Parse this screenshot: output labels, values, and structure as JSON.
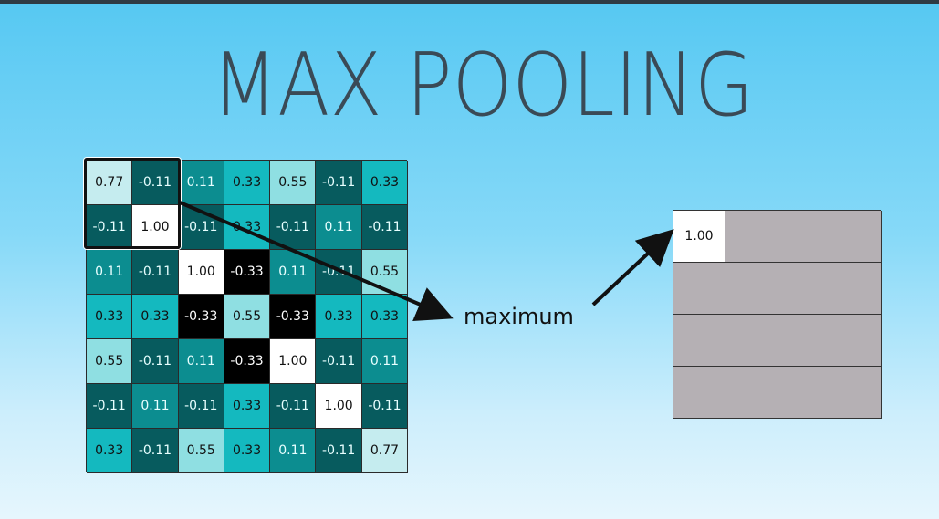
{
  "title": "MAX POOLING",
  "arrow_label": "maximum",
  "input_grid": [
    [
      "0.77",
      "-0.11",
      "0.11",
      "0.33",
      "0.55",
      "-0.11",
      "0.33"
    ],
    [
      "-0.11",
      "1.00",
      "-0.11",
      "0.33",
      "-0.11",
      "0.11",
      "-0.11"
    ],
    [
      "0.11",
      "-0.11",
      "1.00",
      "-0.33",
      "0.11",
      "-0.11",
      "0.55"
    ],
    [
      "0.33",
      "0.33",
      "-0.33",
      "0.55",
      "-0.33",
      "0.33",
      "0.33"
    ],
    [
      "0.55",
      "-0.11",
      "0.11",
      "-0.33",
      "1.00",
      "-0.11",
      "0.11"
    ],
    [
      "-0.11",
      "0.11",
      "-0.11",
      "0.33",
      "-0.11",
      "1.00",
      "-0.11"
    ],
    [
      "0.33",
      "-0.11",
      "0.55",
      "0.33",
      "0.11",
      "-0.11",
      "0.77"
    ]
  ],
  "output_grid": [
    [
      "1.00",
      "",
      "",
      ""
    ],
    [
      "",
      "",
      "",
      ""
    ],
    [
      "",
      "",
      "",
      ""
    ],
    [
      "",
      "",
      "",
      ""
    ]
  ],
  "value_colors": {
    "1.00": {
      "bg": "#ffffff",
      "fg": "#111111"
    },
    "0.77": {
      "bg": "#c5ecef",
      "fg": "#111111"
    },
    "0.55": {
      "bg": "#8fdfe2",
      "fg": "#111111"
    },
    "0.33": {
      "bg": "#14b9bf",
      "fg": "#111111"
    },
    "0.11": {
      "bg": "#0c8d90",
      "fg": "#e8ffff"
    },
    "-0.11": {
      "bg": "#075b5e",
      "fg": "#e8ffff"
    },
    "-0.33": {
      "bg": "#000000",
      "fg": "#ffffff"
    }
  },
  "colors": {
    "output_empty": "#b5b0b4",
    "output_filled": "#ffffff",
    "title": "#3a4a56"
  }
}
